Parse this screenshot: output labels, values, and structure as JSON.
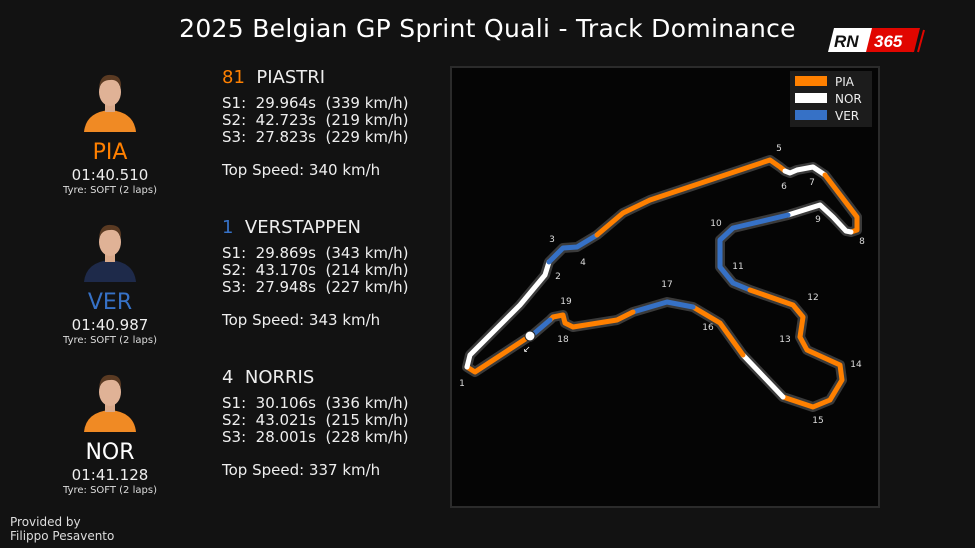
{
  "title": "2025 Belgian GP Sprint Quali - Track Dominance",
  "logo": {
    "text_a": "RN",
    "text_b": "365"
  },
  "colors": {
    "PIA": "#ff8000",
    "NOR": "#ffffff",
    "VER": "#3671c6"
  },
  "drivers": [
    {
      "code": "PIA",
      "number": "81",
      "name": "PIASTRI",
      "lap_time": "01:40.510",
      "tyre": "Tyre: SOFT (2 laps)",
      "s1": "S1:  29.964s  (339 km/h)",
      "s2": "S2:  42.723s  (219 km/h)",
      "s3": "S3:  27.823s  (229 km/h)",
      "top_speed": "Top Speed: 340 km/h",
      "color": "#ff8000",
      "suit": "#f08a24"
    },
    {
      "code": "VER",
      "number": "1",
      "name": "VERSTAPPEN",
      "lap_time": "01:40.987",
      "tyre": "Tyre: SOFT (2 laps)",
      "s1": "S1:  29.869s  (343 km/h)",
      "s2": "S2:  43.170s  (214 km/h)",
      "s3": "S3:  27.948s  (227 km/h)",
      "top_speed": "Top Speed: 343 km/h",
      "color": "#3671c6",
      "suit": "#1e2a4a"
    },
    {
      "code": "NOR",
      "number": "4",
      "name": "NORRIS",
      "lap_time": "01:41.128",
      "tyre": "Tyre: SOFT (2 laps)",
      "s1": "S1:  30.106s  (336 km/h)",
      "s2": "S2:  43.021s  (215 km/h)",
      "s3": "S3:  28.001s  (228 km/h)",
      "top_speed": "Top Speed: 337 km/h",
      "color": "#ffffff",
      "suit": "#f08a24"
    }
  ],
  "legend": [
    "PIA",
    "NOR",
    "VER"
  ],
  "segments": [
    "PIA",
    "NOR",
    "VER",
    "PIA",
    "NOR",
    "PIA",
    "NOR",
    "VER",
    "PIA",
    "NOR",
    "PIA",
    "VER",
    "PIA",
    "VER"
  ],
  "corners": [
    "1",
    "2",
    "3",
    "4",
    "5",
    "6",
    "7",
    "8",
    "9",
    "10",
    "11",
    "12",
    "13",
    "14",
    "15",
    "16",
    "17",
    "18",
    "19"
  ],
  "footer": {
    "line1": "Provided by",
    "line2": "Filippo Pesavento"
  }
}
